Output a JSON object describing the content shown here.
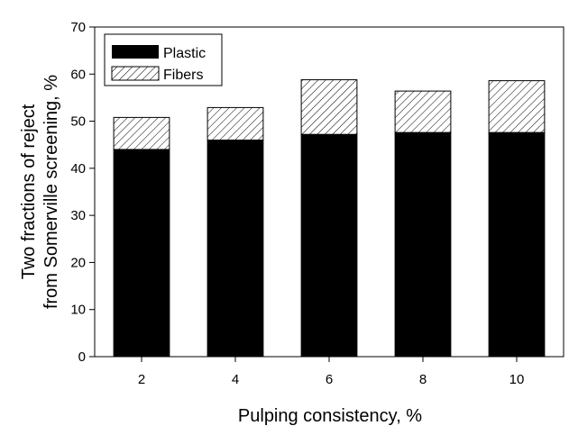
{
  "chart_data": {
    "type": "bar",
    "stacked": true,
    "categories": [
      "2",
      "4",
      "6",
      "8",
      "10"
    ],
    "series": [
      {
        "name": "Plastic",
        "values": [
          44.0,
          46.0,
          47.2,
          47.6,
          47.6
        ],
        "fill": "solid",
        "color": "#000000"
      },
      {
        "name": "Fibers",
        "values": [
          6.8,
          6.9,
          11.6,
          8.8,
          11.0
        ],
        "fill": "hatched",
        "color": "#000000"
      }
    ],
    "xlabel": "Pulping consistency, %",
    "ylabel_lines": [
      "Two fractions of reject",
      "from Somerville screening, %"
    ],
    "ylim": [
      0,
      70
    ],
    "yticks": [
      0,
      10,
      20,
      30,
      40,
      50,
      60,
      70
    ],
    "grid": false,
    "legend_position": "top-left"
  }
}
